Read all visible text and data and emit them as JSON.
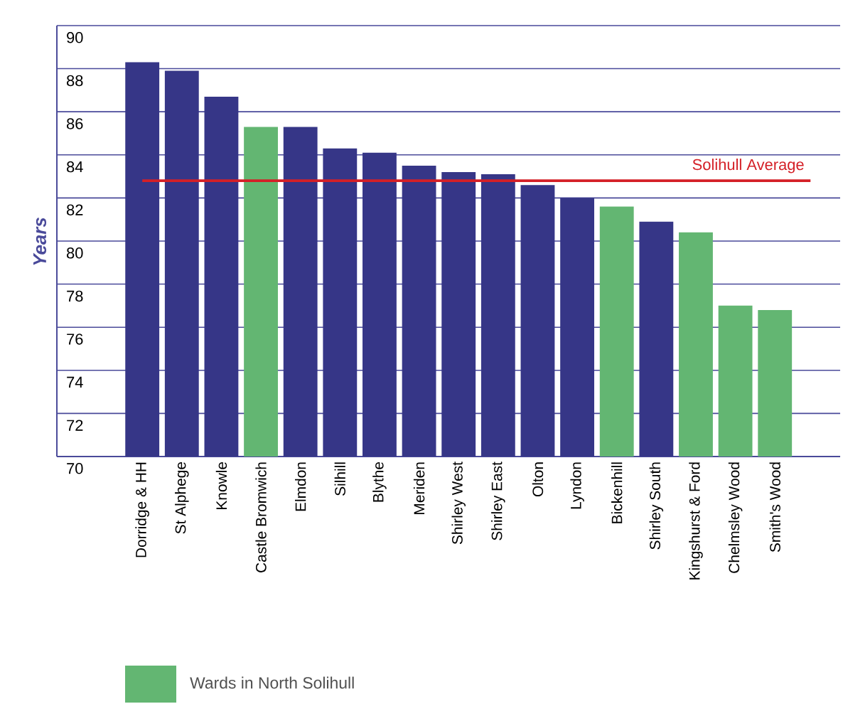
{
  "chart_data": {
    "type": "bar",
    "ylabel": "Years",
    "categories": [
      "Dorridge & HH",
      "St Alphege",
      "Knowle",
      "Castle Bromwich",
      "Elmdon",
      "Silhill",
      "Blythe",
      "Meriden",
      "Shirley West",
      "Shirley East",
      "Olton",
      "Lyndon",
      "Bickenhill",
      "Shirley South",
      "Kingshurst & Ford",
      "Chelmsley Wood",
      "Smith's Wood"
    ],
    "series": [
      {
        "color": "#363687",
        "values": [
          88.3,
          87.9,
          86.7,
          null,
          85.3,
          84.3,
          84.1,
          83.5,
          83.2,
          83.1,
          82.6,
          82.0,
          null,
          80.9,
          null,
          null,
          null
        ]
      },
      {
        "name": "Wards in North Solihull",
        "color": "#63b672",
        "values": [
          null,
          null,
          null,
          85.3,
          null,
          null,
          null,
          null,
          null,
          null,
          null,
          null,
          81.6,
          null,
          80.4,
          77.0,
          76.8
        ]
      }
    ],
    "ylim": [
      70,
      90
    ],
    "yticks": [
      70,
      72,
      74,
      76,
      78,
      80,
      82,
      84,
      86,
      88,
      90
    ],
    "grid": "y",
    "legend": "bottom left",
    "ref_lines": [
      {
        "axis": "y",
        "value": 82.8,
        "label": "Solihull Average",
        "color": "#d42027"
      }
    ]
  }
}
